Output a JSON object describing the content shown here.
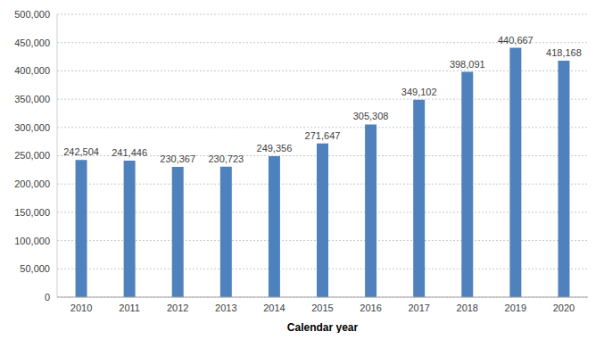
{
  "chart_data": {
    "type": "bar",
    "x_label": "Calendar year",
    "categories": [
      "2010",
      "2011",
      "2012",
      "2013",
      "2014",
      "2015",
      "2016",
      "2017",
      "2018",
      "2019",
      "2020"
    ],
    "values": [
      242504,
      241446,
      230367,
      230723,
      249356,
      271647,
      305308,
      349102,
      398091,
      440667,
      418168
    ],
    "value_labels": [
      "242,504",
      "241,446",
      "230,367",
      "230,723",
      "249,356",
      "271,647",
      "305,308",
      "349,102",
      "398,091",
      "440,667",
      "418,168"
    ],
    "data_labels": true,
    "color": "#4f81bd",
    "ylim": [
      0,
      500000
    ],
    "yticks": [
      0,
      {
        "value": 50000,
        "label": "50,000"
      },
      {
        "value": 100000,
        "label": "100,000"
      },
      {
        "value": 150000,
        "label": "150,000"
      },
      {
        "value": 200000,
        "label": "200,000"
      },
      {
        "value": 250000,
        "label": "250,000"
      },
      {
        "value": 300000,
        "label": "300,000"
      },
      {
        "value": 350000,
        "label": "350,000"
      },
      {
        "value": 400000,
        "label": "400,000"
      },
      {
        "value": 450000,
        "label": "450,000"
      },
      {
        "value": 500000,
        "label": "500,000"
      }
    ],
    "grid": true
  }
}
